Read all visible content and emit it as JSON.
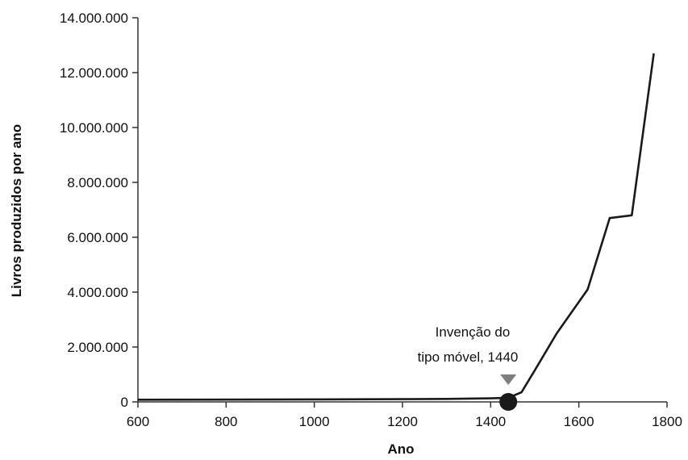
{
  "chart_data": {
    "type": "line",
    "title": "",
    "xlabel": "Ano",
    "ylabel": "Livros produzidos por ano",
    "xlim": [
      600,
      1800
    ],
    "ylim": [
      0,
      14000000
    ],
    "x_ticks": [
      600,
      800,
      1000,
      1200,
      1400,
      1600,
      1800
    ],
    "x_tick_labels": [
      "600",
      "800",
      "1000",
      "1200",
      "1400",
      "1600",
      "1800"
    ],
    "y_ticks": [
      0,
      2000000,
      4000000,
      6000000,
      8000000,
      10000000,
      12000000,
      14000000
    ],
    "y_tick_labels": [
      "0",
      "2.000.000",
      "4.000.000",
      "6.000.000",
      "8.000.000",
      "10.000.000",
      "12.000.000",
      "14.000.000"
    ],
    "grid": false,
    "series": [
      {
        "color": "#1a1a1a",
        "x": [
          600,
          1000,
          1200,
          1300,
          1400,
          1440,
          1470,
          1500,
          1550,
          1620,
          1670,
          1720,
          1770
        ],
        "y": [
          80000,
          90000,
          100000,
          110000,
          130000,
          150000,
          350000,
          1150000,
          2500000,
          4100000,
          6700000,
          6800000,
          12700000
        ]
      }
    ],
    "annotation": {
      "line1": "Invenção do",
      "line2": "tipo móvel, 1440",
      "x": 1440,
      "y": 0,
      "marker_color": "#1a1a1a",
      "arrow_color": "#7f7f7f"
    }
  }
}
